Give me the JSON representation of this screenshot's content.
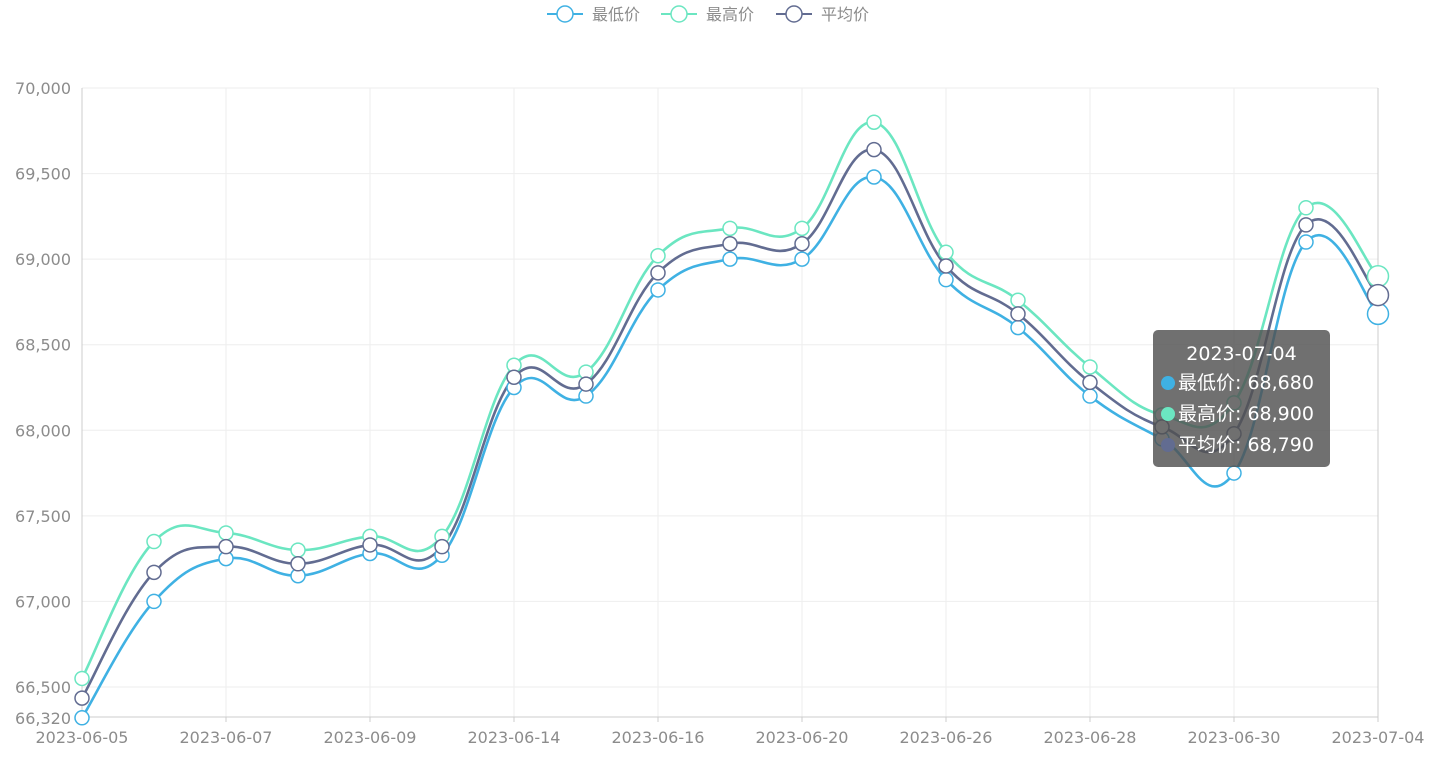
{
  "chart_data": {
    "type": "line",
    "smooth": true,
    "x": [
      "2023-06-05",
      "2023-06-06",
      "2023-06-07",
      "2023-06-08",
      "2023-06-09",
      "2023-06-12",
      "2023-06-14",
      "2023-06-15",
      "2023-06-16",
      "2023-06-19",
      "2023-06-20",
      "2023-06-21",
      "2023-06-26",
      "2023-06-27",
      "2023-06-28",
      "2023-06-29",
      "2023-06-30",
      "2023-07-03",
      "2023-07-04"
    ],
    "x_tick_labels": [
      "2023-06-05",
      "2023-06-07",
      "2023-06-09",
      "2023-06-14",
      "2023-06-16",
      "2023-06-20",
      "2023-06-26",
      "2023-06-28",
      "2023-06-30",
      "2023-07-04"
    ],
    "y_tick_labels": [
      "66,320",
      "66,500",
      "67,000",
      "67,500",
      "68,000",
      "68,500",
      "69,000",
      "69,500",
      "70,000"
    ],
    "ylim": [
      66320,
      70000
    ],
    "grid": true,
    "legend_position": "top-center",
    "series": [
      {
        "name": "最低价",
        "color": "#3fb1e3",
        "values": [
          66320,
          67000,
          67250,
          67150,
          67280,
          67270,
          68250,
          68200,
          68820,
          69000,
          69000,
          69480,
          68880,
          68600,
          68200,
          67950,
          67750,
          69100,
          68680
        ]
      },
      {
        "name": "最高价",
        "color": "#6be6c1",
        "values": [
          66550,
          67350,
          67400,
          67300,
          67380,
          67380,
          68380,
          68340,
          69020,
          69180,
          69180,
          69800,
          69040,
          68760,
          68370,
          68090,
          68160,
          69300,
          68900
        ]
      },
      {
        "name": "平均价",
        "color": "#626c91",
        "values": [
          66435,
          67170,
          67320,
          67220,
          67330,
          67320,
          68310,
          68270,
          68920,
          69090,
          69090,
          69640,
          68960,
          68680,
          68280,
          68020,
          67980,
          69200,
          68790
        ]
      }
    ],
    "tooltip": {
      "title": "2023-07-04",
      "rows": [
        {
          "label": "最低价: 68,680",
          "color": "#3fb1e3"
        },
        {
          "label": "最高价: 68,900",
          "color": "#6be6c1"
        },
        {
          "label": "平均价: 68,790",
          "color": "#626c91"
        }
      ]
    }
  }
}
